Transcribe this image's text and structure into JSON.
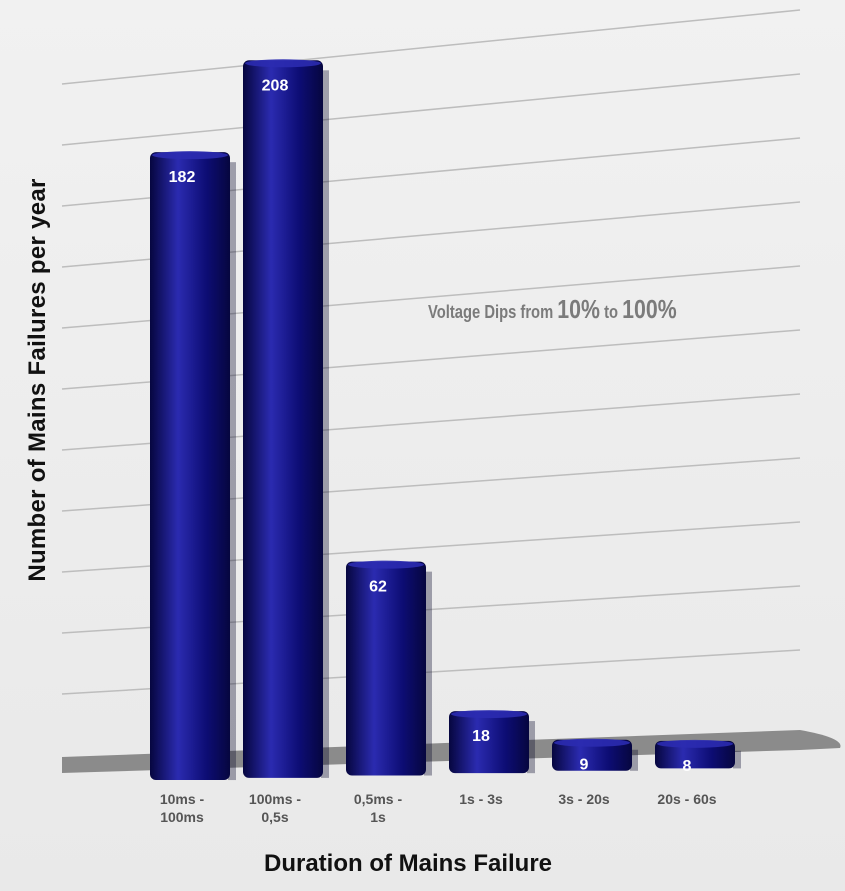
{
  "chart_data": {
    "type": "bar",
    "categories": [
      "10ms -\n100ms",
      "100ms -\n0,5s",
      "0,5ms -\n1s",
      "1s - 3s",
      "3s - 20s",
      "20s - 60s"
    ],
    "values": [
      182,
      208,
      62,
      18,
      9,
      8
    ],
    "data_labels": [
      "182",
      "208",
      "62",
      "18",
      "9",
      "8"
    ],
    "title": "",
    "xlabel": "Duration of Mains Failure",
    "ylabel": "Number of Mains Failures per year",
    "ylim": [
      0,
      220
    ],
    "grid": true,
    "legend": "none",
    "annotation": {
      "prefix": "Voltage Dips from ",
      "from": "10%",
      "middle": " to ",
      "to": "100%"
    },
    "colors": {
      "bar": "#0d0d75",
      "bar_dark": "#06063f",
      "bar_light": "#2b2bb0",
      "label": "#ffffff",
      "grid": "#bdbdbd",
      "floor": "#7a7a7a"
    }
  }
}
